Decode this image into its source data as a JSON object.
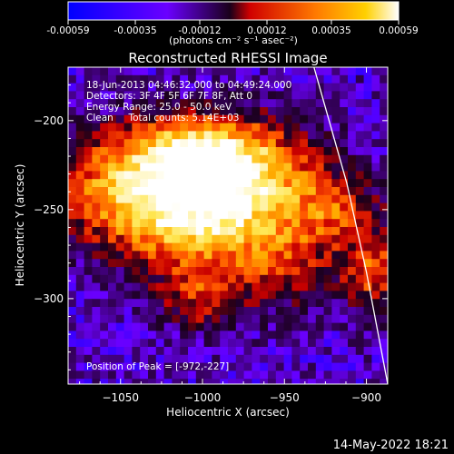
{
  "colorbar": {
    "tick_labels": [
      "-0.00059",
      "-0.00035",
      "-0.00012",
      "0.00012",
      "0.00035",
      "0.00059"
    ],
    "ticks": [
      -0.00059,
      -0.00035,
      -0.00012,
      0.00012,
      0.00035,
      0.00059
    ],
    "range": [
      -0.00059,
      0.00059
    ],
    "units": "(photons cm⁻² s⁻¹ asec⁻²)",
    "colors": [
      "#0000ff",
      "#6a00ff",
      "#1a001a",
      "#ff0000",
      "#ff7a00",
      "#ffffff"
    ]
  },
  "chart_data": {
    "type": "heatmap",
    "title": "Reconstructed RHESSI Image",
    "xlabel": "Heliocentric X (arcsec)",
    "ylabel": "Heliocentric Y (arcsec)",
    "xlim": [
      -1082,
      -887
    ],
    "ylim": [
      -348,
      -170
    ],
    "x_ticks": [
      -1050,
      -1000,
      -950,
      -900
    ],
    "x_tick_labels": [
      "−1050",
      "−1000",
      "−950",
      "−900"
    ],
    "y_ticks": [
      -200,
      -250,
      -300
    ],
    "y_tick_labels": [
      "−200",
      "−250",
      "−300"
    ],
    "peak_position": [
      -972,
      -227
    ],
    "limb_curve": [
      [
        -932,
        -170
      ],
      [
        -912,
        -235
      ],
      [
        -900,
        -285
      ],
      [
        -887,
        -348
      ]
    ],
    "annotations": [
      "18-Jun-2013 04:46:32.000 to 04:49:24.000",
      "Detectors: 3F 4F 5F 6F 7F 8F, Att 0",
      "Energy Range: 25.0 - 50.0 keV",
      "Clean     Total counts: 5.14E+03"
    ],
    "peak_label": "Position of Peak = [-972,-227]"
  },
  "footer": {
    "timestamp": "14-May-2022 18:21"
  }
}
